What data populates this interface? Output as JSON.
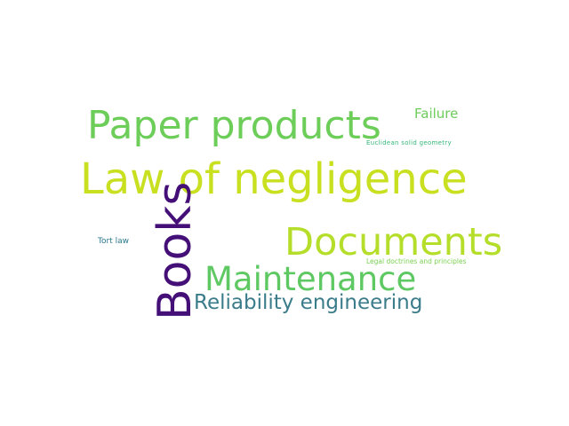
{
  "words": [
    {
      "text": "Paper products",
      "color": "#6cce59"
    },
    {
      "text": "Failure",
      "color": "#6ccd5a"
    },
    {
      "text": "Euclidean solid geometry",
      "color": "#35b779"
    },
    {
      "text": "Law of negligence",
      "color": "#c8e020"
    },
    {
      "text": "Documents",
      "color": "#b5de2b"
    },
    {
      "text": "Tort law",
      "color": "#2a788e"
    },
    {
      "text": "Legal doctrines and principles",
      "color": "#7ad151"
    },
    {
      "text": "Maintenance",
      "color": "#5ec962"
    },
    {
      "text": "Reliability engineering",
      "color": "#3b7c8a"
    },
    {
      "text": "Books",
      "color": "#440f76"
    }
  ]
}
